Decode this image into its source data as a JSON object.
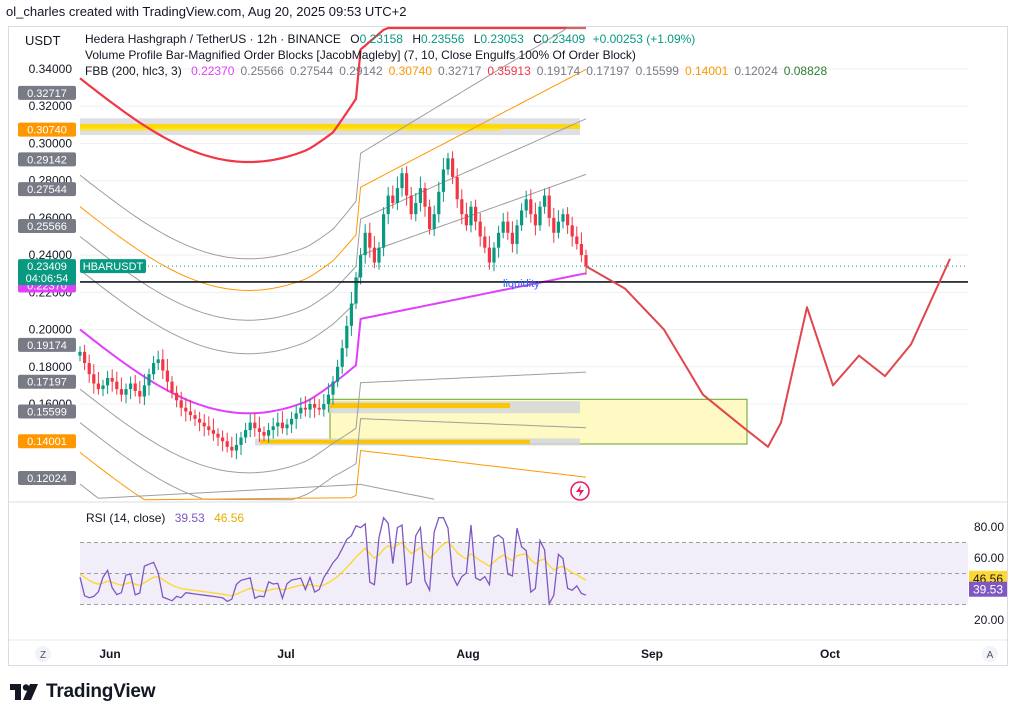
{
  "header": {
    "creator_line": "ol_charles created with TradingView.com, Aug 20, 2025 09:53 UTC+2"
  },
  "currency": "USDT",
  "legend": {
    "symbol": "Hedera Hashgraph / TetherUS · 12h · BINANCE",
    "ohlc": [
      {
        "k": "O",
        "v": "0.23158"
      },
      {
        "k": "H",
        "v": "0.23556"
      },
      {
        "k": "L",
        "v": "0.23053"
      },
      {
        "k": "C",
        "v": "0.23409"
      }
    ],
    "change": "+0.00253 (+1.09%)",
    "indicator1": "Volume Profile Bar-Magnified Order Blocks [JacobMagleby] (7, 10, Close Engulfs 100% Of Order Block)",
    "fbb_label": "FBB (200, hlc3, 3)",
    "fbb_values": [
      {
        "v": "0.22370",
        "color": "#e040fb"
      },
      {
        "v": "0.25566",
        "color": "#787b86"
      },
      {
        "v": "0.27544",
        "color": "#787b86"
      },
      {
        "v": "0.29142",
        "color": "#787b86"
      },
      {
        "v": "0.30740",
        "color": "#ff9800"
      },
      {
        "v": "0.32717",
        "color": "#787b86"
      },
      {
        "v": "0.35913",
        "color": "#f23645"
      },
      {
        "v": "0.19174",
        "color": "#787b86"
      },
      {
        "v": "0.17197",
        "color": "#787b86"
      },
      {
        "v": "0.15599",
        "color": "#787b86"
      },
      {
        "v": "0.14001",
        "color": "#ff9800"
      },
      {
        "v": "0.12024",
        "color": "#787b86"
      },
      {
        "v": "0.08828",
        "color": "#2e7d32"
      }
    ]
  },
  "annotation": {
    "liquidity": "liquidity"
  },
  "rsi": {
    "label": "RSI (14, close)",
    "value": "39.53",
    "ma_value": "46.56",
    "levels": [
      "80.00",
      "60.00",
      "20.00"
    ]
  },
  "price_axis": {
    "ticks": [
      "0.34000",
      "0.32000",
      "0.30000",
      "0.28000",
      "0.26000",
      "0.24000",
      "0.22000",
      "0.20000",
      "0.18000",
      "0.16000"
    ],
    "tags": [
      {
        "text": "0.32717",
        "bg": "#787b86",
        "fg": "#ffffff",
        "price": 0.32717
      },
      {
        "text": "0.30740",
        "bg": "#ff9800",
        "fg": "#ffffff",
        "price": 0.3074
      },
      {
        "text": "0.29142",
        "bg": "#787b86",
        "fg": "#ffffff",
        "price": 0.29142
      },
      {
        "text": "0.27544",
        "bg": "#787b86",
        "fg": "#ffffff",
        "price": 0.27544
      },
      {
        "text": "0.25566",
        "bg": "#787b86",
        "fg": "#ffffff",
        "price": 0.25566
      },
      {
        "text": "0.22559",
        "bg": "#131722",
        "fg": "#ffffff",
        "price": 0.22559
      },
      {
        "text": "0.22370",
        "bg": "#e040fb",
        "fg": "#ffffff",
        "price": 0.2237
      },
      {
        "text": "0.19174",
        "bg": "#787b86",
        "fg": "#ffffff",
        "price": 0.19174
      },
      {
        "text": "0.17197",
        "bg": "#787b86",
        "fg": "#ffffff",
        "price": 0.17197
      },
      {
        "text": "0.15599",
        "bg": "#787b86",
        "fg": "#ffffff",
        "price": 0.15599
      },
      {
        "text": "0.14001",
        "bg": "#ff9800",
        "fg": "#ffffff",
        "price": 0.14001
      },
      {
        "text": "0.12024",
        "bg": "#787b86",
        "fg": "#ffffff",
        "price": 0.12024
      }
    ],
    "last_price": "0.23409",
    "countdown": "04:06:54",
    "symbol_tag": "HBARUSDT"
  },
  "time_axis": {
    "labels": [
      "Jun",
      "Jul",
      "Aug",
      "Sep",
      "Oct"
    ],
    "left_btn": "Z",
    "right_btn": "A"
  },
  "brand": "TradingView",
  "colors": {
    "up": "#089981",
    "down": "#f23645",
    "fbb_basis": "#e040fb",
    "fbb_upper": "#f23645",
    "fbb_lower": "#2e7d32",
    "fbb_orange": "#ff9800",
    "projection": "#e0474c",
    "rsi_line": "#7e57c2",
    "rsi_ma": "#fdd835"
  },
  "chart_data": {
    "type": "candlestick",
    "timeframe": "12h",
    "ylim": [
      0.105,
      0.355
    ],
    "support_line": 0.22559,
    "last_close": 0.23409,
    "resistance_zone": [
      0.3045,
      0.3135
    ],
    "demand_zone": [
      0.1385,
      0.1625
    ],
    "closes_approx": [
      0.188,
      0.182,
      0.176,
      0.171,
      0.168,
      0.17,
      0.174,
      0.172,
      0.168,
      0.165,
      0.168,
      0.171,
      0.167,
      0.164,
      0.17,
      0.176,
      0.182,
      0.184,
      0.178,
      0.172,
      0.166,
      0.162,
      0.158,
      0.156,
      0.154,
      0.152,
      0.15,
      0.148,
      0.146,
      0.144,
      0.142,
      0.14,
      0.137,
      0.135,
      0.138,
      0.142,
      0.146,
      0.15,
      0.147,
      0.145,
      0.143,
      0.146,
      0.148,
      0.15,
      0.147,
      0.149,
      0.152,
      0.155,
      0.158,
      0.157,
      0.16,
      0.158,
      0.157,
      0.16,
      0.165,
      0.172,
      0.18,
      0.19,
      0.202,
      0.214,
      0.228,
      0.24,
      0.252,
      0.244,
      0.236,
      0.244,
      0.262,
      0.272,
      0.268,
      0.276,
      0.284,
      0.272,
      0.262,
      0.268,
      0.276,
      0.266,
      0.254,
      0.262,
      0.274,
      0.286,
      0.292,
      0.282,
      0.27,
      0.262,
      0.256,
      0.266,
      0.258,
      0.25,
      0.244,
      0.236,
      0.244,
      0.252,
      0.258,
      0.252,
      0.246,
      0.256,
      0.264,
      0.27,
      0.262,
      0.256,
      0.266,
      0.272,
      0.26,
      0.252,
      0.258,
      0.262,
      0.256,
      0.25,
      0.246,
      0.24,
      0.234
    ],
    "projection_path": [
      [
        0.234,
        0
      ],
      [
        0.222,
        6
      ],
      [
        0.2,
        12
      ],
      [
        0.165,
        18
      ],
      [
        0.148,
        24
      ],
      [
        0.137,
        28
      ],
      [
        0.15,
        30
      ],
      [
        0.212,
        34
      ],
      [
        0.17,
        38
      ],
      [
        0.186,
        42
      ],
      [
        0.175,
        46
      ],
      [
        0.192,
        50
      ],
      [
        0.238,
        56
      ]
    ],
    "rsi_levels": [
      80,
      60,
      20
    ]
  }
}
